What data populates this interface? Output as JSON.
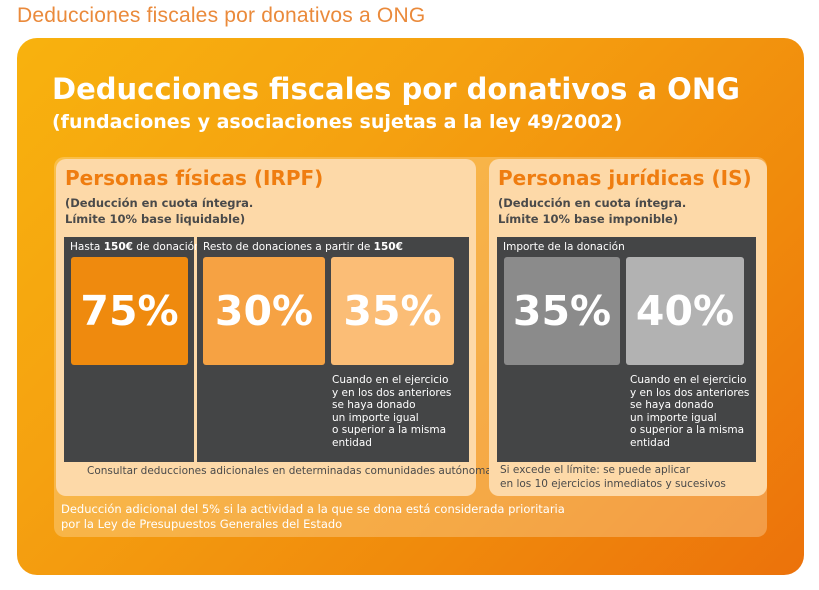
{
  "page": {
    "title": "Deducciones fiscales por donativos a ONG"
  },
  "card": {
    "title": "Deducciones fiscales por donativos a ONG",
    "subtitle": "(fundaciones y asociaciones sujetas a la ley 49/2002)"
  },
  "irpf": {
    "title": "Personas físicas (IRPF)",
    "desc_line1": "(Deducción en cuota íntegra.",
    "desc_line2": "Límite 10% base liquidable)",
    "col1_label_pre": "Hasta ",
    "col1_label_bold": "150€",
    "col1_label_post": " de donación",
    "col1_value": "75%",
    "col2_label_pre": "Resto de donaciones a partir de ",
    "col2_label_bold": "150€",
    "col2_value_a": "30%",
    "col2_value_b": "35%",
    "col2_note": "Cuando en el ejercicio\ny en los dos anteriores\nse haya donado\nun importe igual\no superior a la misma\nentidad",
    "footer": "Consultar deducciones adicionales en determinadas comunidades autónomas"
  },
  "is": {
    "title": "Personas jurídicas (IS)",
    "desc_line1": "(Deducción en cuota íntegra.",
    "desc_line2": "Límite 10% base imponible)",
    "label": "Importe de la donación",
    "value_a": "35%",
    "value_b": "40%",
    "note": "Cuando en el ejercicio\ny en los dos anteriores\nse haya donado\nun importe igual\no superior a la misma\nentidad",
    "footer_line1": "Si excede el límite: se puede aplicar",
    "footer_line2": "en los 10 ejercicios inmediatos y sucesivos"
  },
  "bottom_note": {
    "line1": "Deducción adicional del 5% si la actividad a la que se dona está considerada prioritaria",
    "line2": "por la Ley de Presupuestos Generales del Estado"
  },
  "colors": {
    "accent": "#ef7d10",
    "box_dark_orange": "#ef8a0e",
    "box_mid_orange": "#f6a243",
    "box_light_orange": "#fbbd76",
    "box_gray": "#8b8b8b",
    "box_light_gray": "#b2b2b2",
    "panel_bg": "#fdd9a8",
    "dark_bg": "#444546"
  }
}
